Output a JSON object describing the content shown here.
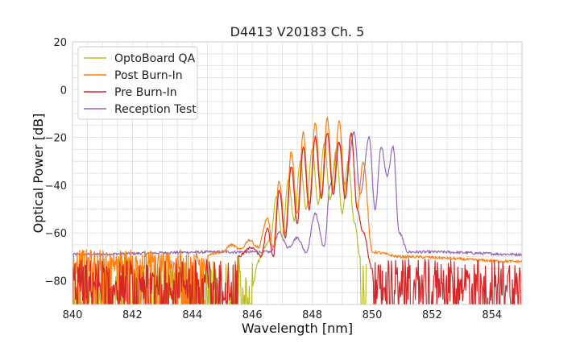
{
  "chart_data": {
    "type": "line",
    "title": "D4413 V20183 Ch. 5",
    "xlabel": "Wavelength [nm]",
    "ylabel": "Optical Power [dB]",
    "xlim": [
      840,
      855
    ],
    "ylim": [
      -90,
      20
    ],
    "xticks": [
      "840",
      "842",
      "844",
      "846",
      "848",
      "850",
      "852",
      "854"
    ],
    "yticks": [
      "20",
      "0",
      "−20",
      "−40",
      "−60",
      "−80"
    ],
    "grid": true,
    "legend": "top-left",
    "series": [
      {
        "name": "OptoBoard QA",
        "color": "#bcbd22",
        "noise_floor": -82,
        "noise_range": [
          840,
          849.8
        ],
        "x": [
          846.0,
          846.2,
          846.4,
          846.6,
          846.8,
          847.0,
          847.2,
          847.4,
          847.6,
          847.8,
          848.0,
          848.2,
          848.4,
          848.6,
          848.8,
          849.0,
          849.2,
          849.4,
          849.6
        ],
        "y": [
          -82,
          -72,
          -66,
          -63,
          -45,
          -62,
          -38,
          -55,
          -30,
          -50,
          -25,
          -48,
          -22,
          -46,
          -25,
          -52,
          -30,
          -55,
          -70
        ]
      },
      {
        "name": "Post Burn-In",
        "color": "#ff7f0e",
        "noise_floor": -72,
        "noise_range": [
          840,
          855
        ],
        "x": [
          844.5,
          845.0,
          845.3,
          845.6,
          845.9,
          846.2,
          846.5,
          846.7,
          846.9,
          847.1,
          847.3,
          847.5,
          847.7,
          847.9,
          848.1,
          848.3,
          848.5,
          848.7,
          848.9,
          849.1,
          849.3,
          849.5,
          849.7,
          850.0,
          851.0,
          855.0
        ],
        "y": [
          -69,
          -68,
          -65,
          -67,
          -63,
          -66,
          -54,
          -66,
          -38,
          -60,
          -26,
          -52,
          -18,
          -48,
          -14,
          -44,
          -12,
          -42,
          -13,
          -45,
          -18,
          -50,
          -30,
          -68,
          -70,
          -72
        ]
      },
      {
        "name": "Pre Burn-In",
        "color": "#d62728",
        "noise_floor": -80,
        "noise_range": [
          840,
          855
        ],
        "x": [
          845.5,
          846.0,
          846.3,
          846.5,
          846.7,
          846.9,
          847.1,
          847.3,
          847.5,
          847.7,
          847.9,
          848.1,
          848.3,
          848.5,
          848.7,
          848.9,
          849.1,
          849.3,
          849.5,
          849.7,
          850.0
        ],
        "y": [
          -70,
          -66,
          -70,
          -58,
          -70,
          -42,
          -62,
          -32,
          -56,
          -24,
          -50,
          -20,
          -46,
          -18,
          -44,
          -22,
          -46,
          -18,
          -50,
          -60,
          -75
        ]
      },
      {
        "name": "Reception Test",
        "color": "#9467bd",
        "noise_floor": -69,
        "noise_range": [
          840,
          855
        ],
        "x": [
          840,
          845.0,
          846.0,
          846.6,
          846.9,
          847.2,
          847.5,
          847.8,
          848.1,
          848.4,
          848.6,
          848.9,
          849.1,
          849.4,
          849.6,
          849.9,
          850.1,
          850.3,
          850.5,
          850.7,
          850.9,
          851.2,
          852.0,
          855.0
        ],
        "y": [
          -69,
          -68,
          -68,
          -68,
          -60,
          -66,
          -62,
          -68,
          -52,
          -66,
          -40,
          -22,
          -40,
          -18,
          -44,
          -20,
          -50,
          -24,
          -36,
          -24,
          -60,
          -68,
          -68,
          -69
        ]
      }
    ]
  }
}
